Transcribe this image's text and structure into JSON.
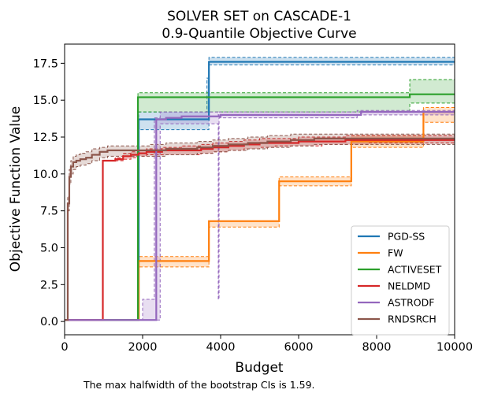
{
  "chart_data": {
    "type": "line",
    "title": "SOLVER SET on CASCADE-1",
    "subtitle": "0.9-Quantile Objective Curve",
    "xlabel": "Budget",
    "ylabel": "Objective Function Value",
    "xlim": [
      0,
      10000
    ],
    "ylim": [
      -0.9,
      18.8
    ],
    "x_ticks": [
      0,
      2000,
      4000,
      6000,
      8000,
      10000
    ],
    "x_tick_labels": [
      "0",
      "2000",
      "4000",
      "6000",
      "8000",
      "10000"
    ],
    "y_ticks": [
      0,
      2.5,
      5,
      7.5,
      10,
      12.5,
      15,
      17.5
    ],
    "y_tick_labels": [
      "0.0",
      "2.5",
      "5.0",
      "7.5",
      "10.0",
      "12.5",
      "15.0",
      "17.5"
    ],
    "grid": false,
    "legend_position": "lower-right",
    "footnote": "The max halfwidth of the bootstrap CIs is 1.59.",
    "series": [
      {
        "name": "PGD-SS",
        "color": "#1f77b4",
        "x": [
          0,
          1900,
          1900,
          3700,
          3700,
          10000
        ],
        "y": [
          0.1,
          0.1,
          13.7,
          13.7,
          17.6,
          17.6
        ],
        "ci_x": [
          0,
          1900,
          1900,
          3650,
          3650,
          3700,
          3700,
          10000
        ],
        "ci_low": [
          0.1,
          0.1,
          13.0,
          13.0,
          13.0,
          13.0,
          17.4,
          17.4
        ],
        "ci_high": [
          0.1,
          0.1,
          14.2,
          14.2,
          16.5,
          16.5,
          17.9,
          17.9
        ]
      },
      {
        "name": "FW",
        "color": "#ff7f0e",
        "x": [
          0,
          1900,
          1900,
          3700,
          3700,
          5500,
          5500,
          7350,
          7350,
          9200,
          9200,
          10000
        ],
        "y": [
          0.1,
          0.1,
          4.1,
          4.1,
          6.8,
          6.8,
          9.5,
          9.5,
          12.2,
          12.2,
          14.2,
          14.2
        ],
        "ci_x": [
          0,
          1900,
          1900,
          3700,
          3700,
          5500,
          5500,
          7350,
          7350,
          9200,
          9200,
          10000
        ],
        "ci_low": [
          0.1,
          0.1,
          3.7,
          3.7,
          6.4,
          6.4,
          9.2,
          9.2,
          11.8,
          11.8,
          13.5,
          13.5
        ],
        "ci_high": [
          0.1,
          0.1,
          4.4,
          4.4,
          6.8,
          6.8,
          9.8,
          9.8,
          12.6,
          12.6,
          14.5,
          14.5
        ]
      },
      {
        "name": "ACTIVESET",
        "color": "#2ca02c",
        "x": [
          0,
          1880,
          1880,
          8850,
          8850,
          10000
        ],
        "y": [
          0.1,
          0.1,
          15.2,
          15.2,
          15.4,
          15.4
        ],
        "ci_x": [
          0,
          1880,
          1880,
          8850,
          8850,
          10000
        ],
        "ci_low": [
          0.1,
          0.1,
          14.2,
          14.2,
          14.8,
          14.8
        ],
        "ci_high": [
          0.1,
          0.1,
          15.5,
          15.5,
          16.4,
          16.4
        ]
      },
      {
        "name": "NELDMD",
        "color": "#d62728",
        "x": [
          0,
          980,
          980,
          1300,
          1500,
          1700,
          1900,
          2100,
          2500,
          3000,
          3500,
          3800,
          4200,
          4600,
          5000,
          5400,
          6000,
          6600,
          7200,
          7800,
          8400,
          9000,
          9600,
          10000
        ],
        "y": [
          0.1,
          0.1,
          10.9,
          11.0,
          11.2,
          11.3,
          11.4,
          11.5,
          11.6,
          11.6,
          11.7,
          11.8,
          11.9,
          12.0,
          12.1,
          12.1,
          12.2,
          12.2,
          12.3,
          12.3,
          12.3,
          12.3,
          12.3,
          12.3
        ],
        "ci_low": [
          0.1,
          0.1,
          10.9,
          10.9,
          11.0,
          11.1,
          11.2,
          11.3,
          11.3,
          11.3,
          11.4,
          11.5,
          11.6,
          11.7,
          11.8,
          11.9,
          11.9,
          12.0,
          12.0,
          12.1,
          12.1,
          12.1,
          12.1,
          12.1
        ],
        "ci_high": [
          0.1,
          0.1,
          10.9,
          11.1,
          11.4,
          11.5,
          11.6,
          11.7,
          11.8,
          11.9,
          12.0,
          12.1,
          12.2,
          12.3,
          12.4,
          12.4,
          12.5,
          12.5,
          12.6,
          12.6,
          12.6,
          12.6,
          12.6,
          12.6
        ]
      },
      {
        "name": "ASTRODF",
        "color": "#9467bd",
        "x": [
          0,
          2350,
          2350,
          2600,
          3000,
          3500,
          4000,
          5000,
          6000,
          7000,
          7500,
          7600,
          8500,
          10000
        ],
        "y": [
          0.1,
          0.1,
          13.7,
          13.8,
          13.9,
          13.9,
          14.0,
          14.0,
          14.0,
          14.0,
          14.0,
          14.2,
          14.2,
          14.2
        ],
        "ci_x": [
          0,
          2000,
          2000,
          2300,
          2300,
          2450,
          2450,
          3940,
          3940,
          3960,
          3960,
          7500,
          7500,
          10000
        ],
        "ci_low": [
          0.1,
          0.1,
          0.1,
          0.1,
          0.1,
          0.1,
          13.4,
          13.4,
          1.5,
          1.5,
          13.8,
          13.8,
          14.0,
          14.0
        ],
        "ci_high": [
          0.1,
          0.1,
          1.5,
          1.5,
          13.8,
          13.8,
          14.2,
          14.2,
          13.8,
          13.8,
          14.2,
          14.2,
          14.3,
          14.3
        ]
      },
      {
        "name": "RNDSRCH",
        "color": "#8c564b",
        "x": [
          0,
          60,
          80,
          120,
          160,
          220,
          300,
          400,
          550,
          700,
          900,
          1100,
          1300,
          1500,
          1800,
          2200,
          2600,
          3000,
          3400,
          3800,
          4200,
          4700,
          5200,
          5800,
          6400,
          7000,
          7600,
          8200,
          8800,
          9400,
          10000
        ],
        "y": [
          0.1,
          0.1,
          8.0,
          9.8,
          10.5,
          10.8,
          10.9,
          11.0,
          11.1,
          11.3,
          11.5,
          11.6,
          11.6,
          11.6,
          11.6,
          11.6,
          11.7,
          11.7,
          11.8,
          11.9,
          12.0,
          12.1,
          12.2,
          12.3,
          12.4,
          12.4,
          12.4,
          12.4,
          12.4,
          12.4,
          12.4
        ],
        "ci_low": [
          0.1,
          0.1,
          7.5,
          9.3,
          10.0,
          10.3,
          10.5,
          10.6,
          10.7,
          10.9,
          11.1,
          11.2,
          11.2,
          11.2,
          11.2,
          11.2,
          11.3,
          11.3,
          11.4,
          11.5,
          11.6,
          11.7,
          11.8,
          11.9,
          12.0,
          12.0,
          12.0,
          12.0,
          12.0,
          12.0,
          12.0
        ],
        "ci_high": [
          0.1,
          0.1,
          8.5,
          10.3,
          10.9,
          11.2,
          11.3,
          11.4,
          11.5,
          11.7,
          11.8,
          11.9,
          11.9,
          11.9,
          11.9,
          12.0,
          12.1,
          12.1,
          12.2,
          12.3,
          12.4,
          12.5,
          12.6,
          12.7,
          12.7,
          12.7,
          12.7,
          12.7,
          12.7,
          12.7,
          12.7
        ]
      }
    ]
  }
}
